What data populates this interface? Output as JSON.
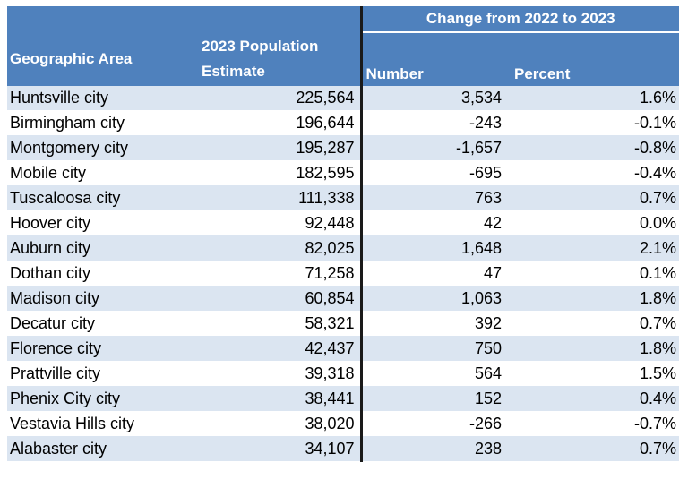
{
  "table": {
    "span_header": "Change from 2022 to 2023",
    "columns": {
      "area": "Geographic Area",
      "pop_line1": "2023 Population",
      "pop_line2": "Estimate",
      "number": "Number",
      "percent": "Percent"
    },
    "rows": [
      {
        "area": "Huntsville city",
        "pop": "225,564",
        "number": "3,534",
        "percent": "1.6%"
      },
      {
        "area": "Birmingham city",
        "pop": "196,644",
        "number": "-243",
        "percent": "-0.1%"
      },
      {
        "area": "Montgomery city",
        "pop": "195,287",
        "number": "-1,657",
        "percent": "-0.8%"
      },
      {
        "area": "Mobile city",
        "pop": "182,595",
        "number": "-695",
        "percent": "-0.4%"
      },
      {
        "area": "Tuscaloosa city",
        "pop": "111,338",
        "number": "763",
        "percent": "0.7%"
      },
      {
        "area": "Hoover city",
        "pop": "92,448",
        "number": "42",
        "percent": "0.0%"
      },
      {
        "area": "Auburn city",
        "pop": "82,025",
        "number": "1,648",
        "percent": "2.1%"
      },
      {
        "area": "Dothan city",
        "pop": "71,258",
        "number": "47",
        "percent": "0.1%"
      },
      {
        "area": "Madison city",
        "pop": "60,854",
        "number": "1,063",
        "percent": "1.8%"
      },
      {
        "area": "Decatur city",
        "pop": "58,321",
        "number": "392",
        "percent": "0.7%"
      },
      {
        "area": "Florence city",
        "pop": "42,437",
        "number": "750",
        "percent": "1.8%"
      },
      {
        "area": "Prattville city",
        "pop": "39,318",
        "number": "564",
        "percent": "1.5%"
      },
      {
        "area": "Phenix City city",
        "pop": "38,441",
        "number": "152",
        "percent": "0.4%"
      },
      {
        "area": "Vestavia Hills city",
        "pop": "38,020",
        "number": "-266",
        "percent": "-0.7%"
      },
      {
        "area": "Alabaster city",
        "pop": "34,107",
        "number": "238",
        "percent": "0.7%"
      }
    ]
  }
}
